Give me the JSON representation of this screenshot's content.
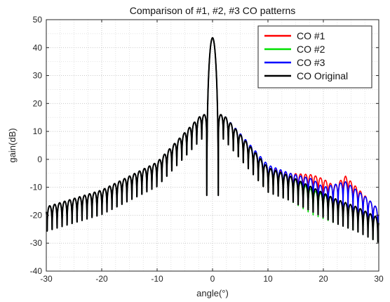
{
  "chart_data": {
    "type": "line",
    "title": "Comparison of #1, #2, #3 CO patterns",
    "xlabel": "angle(°)",
    "ylabel": "gain(dB)",
    "xlim": [
      -30,
      30
    ],
    "ylim": [
      -40,
      50
    ],
    "x_ticks": [
      -30,
      -20,
      -10,
      0,
      10,
      20,
      30
    ],
    "y_ticks": [
      -40,
      -30,
      -20,
      -10,
      0,
      10,
      20,
      30,
      40,
      50
    ],
    "grid": "dotted major and minor",
    "legend_position": "top-right",
    "main_lobe": {
      "x": 0,
      "y": 43.5
    },
    "series": [
      {
        "name": "CO #1",
        "color": "#ff0000",
        "envelope": [
          [
            -30,
            -17
          ],
          [
            -20,
            -11
          ],
          [
            -10,
            -1
          ],
          [
            -2,
            16
          ],
          [
            2,
            16
          ],
          [
            10,
            -3
          ],
          [
            14,
            -5
          ],
          [
            18,
            -5.5
          ],
          [
            20,
            -7
          ],
          [
            22,
            -9.5
          ],
          [
            24,
            -6
          ],
          [
            26,
            -10
          ],
          [
            28,
            -14
          ],
          [
            30,
            -18
          ]
        ]
      },
      {
        "name": "CO #2",
        "color": "#00e000",
        "envelope": [
          [
            -30,
            -17
          ],
          [
            -20,
            -11
          ],
          [
            -10,
            -1
          ],
          [
            -2,
            16
          ],
          [
            2,
            16
          ],
          [
            10,
            -3
          ],
          [
            14,
            -6
          ],
          [
            18,
            -11
          ],
          [
            22,
            -14
          ],
          [
            26,
            -17
          ],
          [
            30,
            -21
          ]
        ]
      },
      {
        "name": "CO #3",
        "color": "#0000ff",
        "envelope": [
          [
            -30,
            -17
          ],
          [
            -20,
            -11
          ],
          [
            -10,
            -1
          ],
          [
            -2,
            16
          ],
          [
            2,
            16
          ],
          [
            10,
            -2
          ],
          [
            14,
            -5
          ],
          [
            18,
            -7
          ],
          [
            20,
            -10
          ],
          [
            22,
            -9
          ],
          [
            24,
            -8
          ],
          [
            26,
            -11
          ],
          [
            28,
            -14
          ],
          [
            30,
            -18
          ]
        ]
      },
      {
        "name": "CO Original",
        "color": "#000000",
        "envelope": [
          [
            -30,
            -17
          ],
          [
            -20,
            -11
          ],
          [
            -10,
            -1
          ],
          [
            -2,
            16
          ],
          [
            2,
            16
          ],
          [
            10,
            -3
          ],
          [
            14,
            -6
          ],
          [
            18,
            -10
          ],
          [
            22,
            -14
          ],
          [
            26,
            -17
          ],
          [
            30,
            -21
          ]
        ]
      }
    ]
  }
}
